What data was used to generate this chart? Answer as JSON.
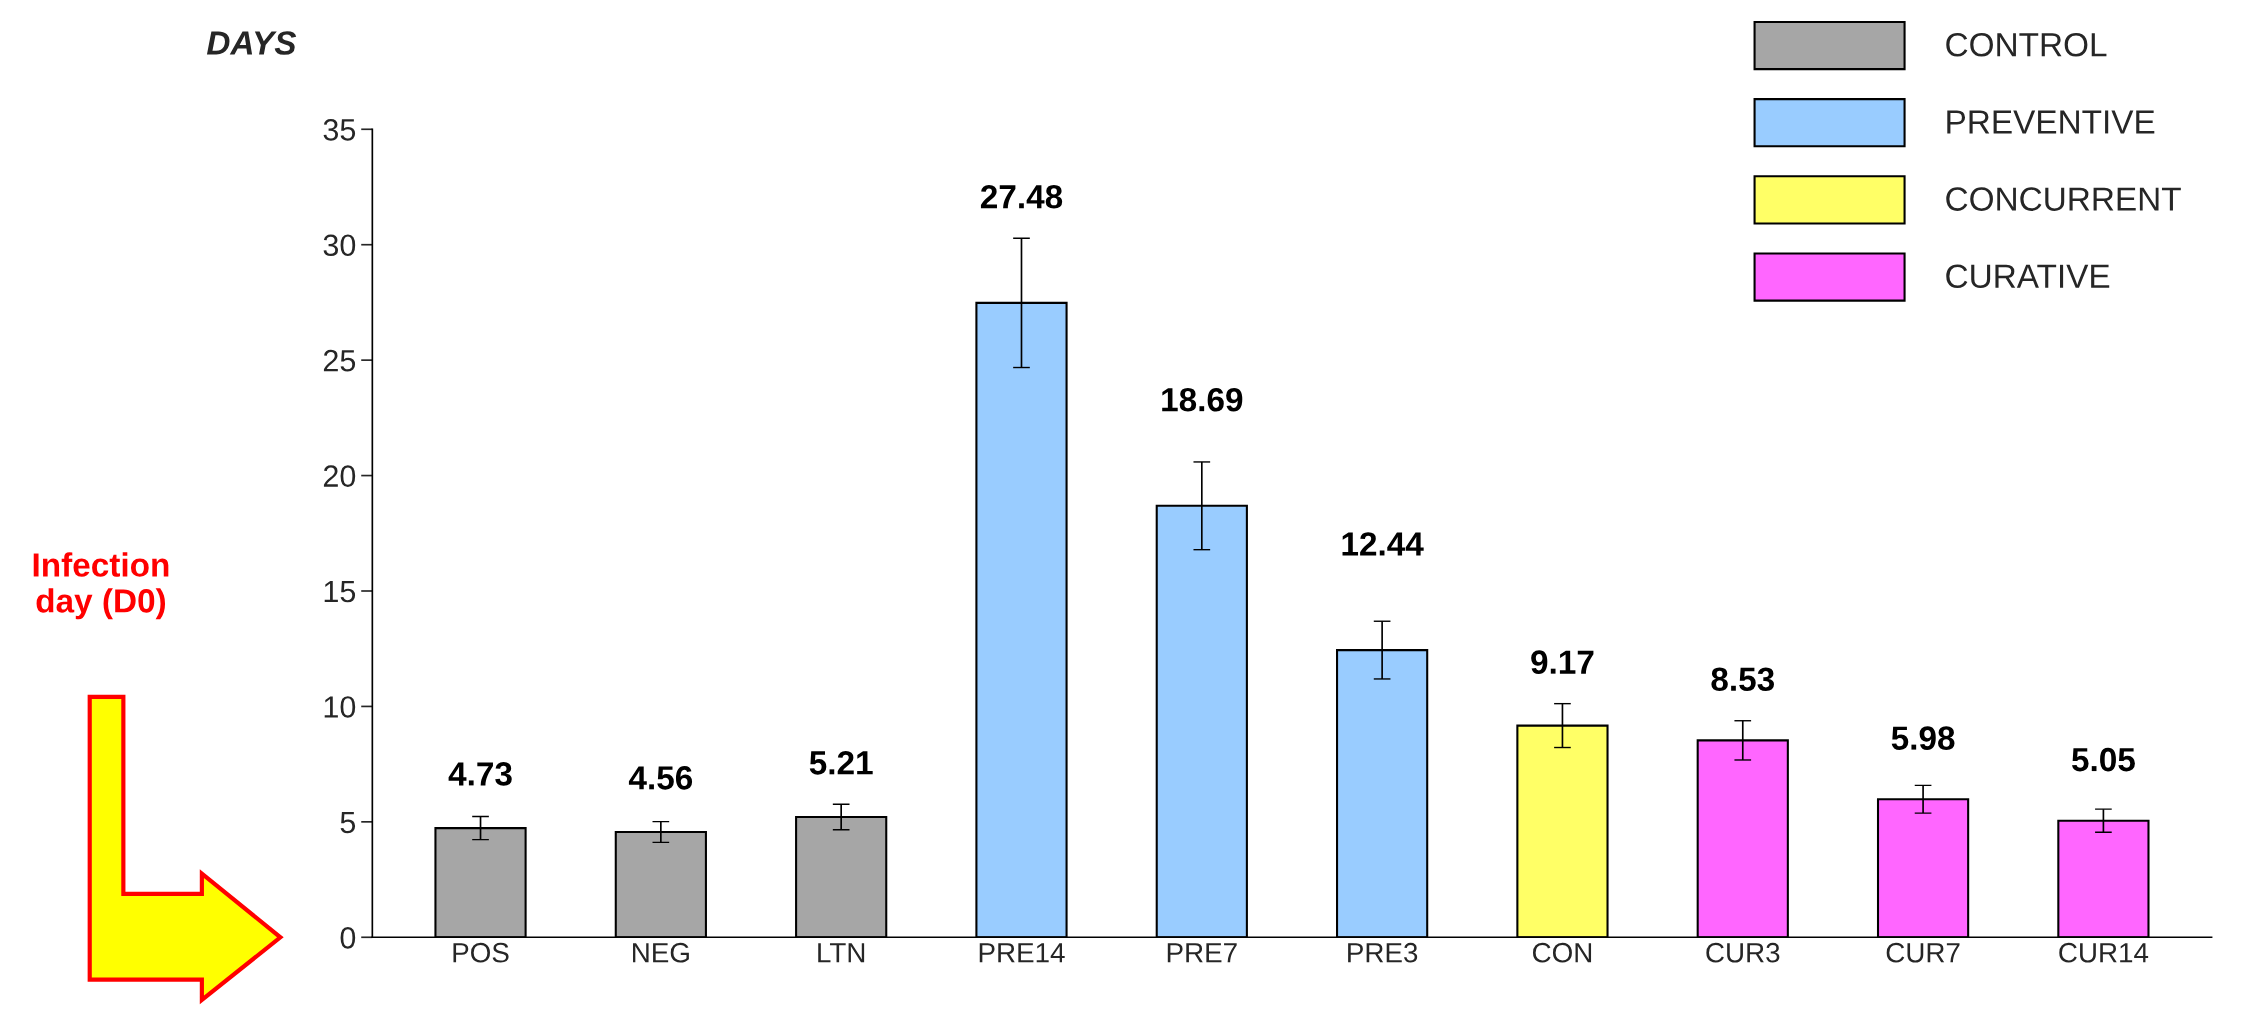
{
  "chart_data": {
    "type": "bar",
    "ylabel": "DAYS",
    "categories": [
      "POS",
      "NEG",
      "LTN",
      "PRE14",
      "PRE7",
      "PRE3",
      "CON",
      "CUR3",
      "CUR7",
      "CUR14"
    ],
    "series": [
      {
        "name": "CONTROL",
        "color": "#a6a6a6",
        "values": [
          4.73,
          4.56,
          5.21,
          null,
          null,
          null,
          null,
          null,
          null,
          null
        ],
        "errors": [
          0.5,
          0.45,
          0.55,
          null,
          null,
          null,
          null,
          null,
          null,
          null
        ]
      },
      {
        "name": "PREVENTIVE",
        "color": "#99ccff",
        "values": [
          null,
          null,
          null,
          27.48,
          18.69,
          12.44,
          null,
          null,
          null,
          null
        ],
        "errors": [
          null,
          null,
          null,
          2.8,
          1.9,
          1.25,
          null,
          null,
          null,
          null
        ]
      },
      {
        "name": "CONCURRENT",
        "color": "#ffff66",
        "values": [
          null,
          null,
          null,
          null,
          null,
          null,
          9.17,
          null,
          null,
          null
        ],
        "errors": [
          null,
          null,
          null,
          null,
          null,
          null,
          0.95,
          null,
          null,
          null
        ]
      },
      {
        "name": "CURATIVE",
        "color": "#ff66ff",
        "values": [
          null,
          null,
          null,
          null,
          null,
          null,
          null,
          8.53,
          5.98,
          5.05
        ],
        "errors": [
          null,
          null,
          null,
          null,
          null,
          null,
          null,
          0.85,
          0.6,
          0.5
        ]
      }
    ],
    "ylim": [
      0,
      35
    ],
    "yticks": [
      0,
      5,
      10,
      15,
      20,
      25,
      30,
      35
    ],
    "data_labels": true,
    "legend": "top right",
    "grid": false,
    "annotations": [
      "Infection day (D0)"
    ]
  }
}
